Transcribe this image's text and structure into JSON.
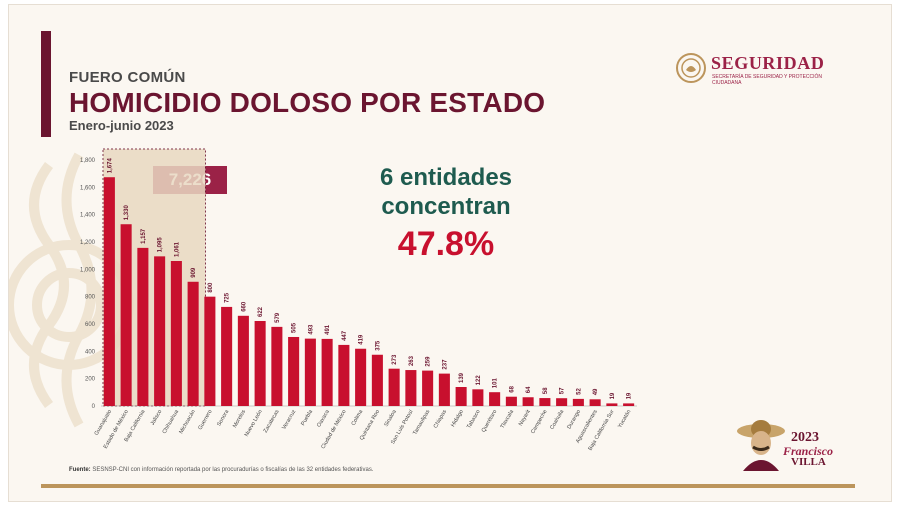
{
  "header": {
    "kicker": "FUERO COMÚN",
    "title": "HOMICIDIO DOLOSO POR ESTADO",
    "subtitle": "Enero-junio 2023"
  },
  "logo": {
    "word": "SEGURIDAD",
    "subtitle": "SECRETARÍA DE SEGURIDAD Y PROTECCIÓN CIUDADANA"
  },
  "highlight": {
    "total": "7,226"
  },
  "callout": {
    "line1": "6 entidades",
    "line2": "concentran",
    "percent": "47.8%"
  },
  "footer": {
    "source_label": "Fuente:",
    "source_text": "SESNSP-CNI con información reportada por las procuradurías o fiscalías de las 32 entidades federativas."
  },
  "emblem": {
    "year": "2023",
    "name1": "Francisco",
    "name2": "VILLA"
  },
  "colors": {
    "bar": "#c8102e",
    "highlight_fill": "#e9d9c2",
    "highlight_border": "#6b1530",
    "accent": "#6b1530",
    "green": "#1e5b4f",
    "gold": "#bc955c"
  },
  "chart_data": {
    "type": "bar",
    "categories": [
      "Guanajuato",
      "Estado de México",
      "Baja California",
      "Jalisco",
      "Chihuahua",
      "Michoacán",
      "Guerrero",
      "Sonora",
      "Morelos",
      "Nuevo León",
      "Zacatecas",
      "Veracruz",
      "Puebla",
      "Oaxaca",
      "Ciudad de México",
      "Colima",
      "Quintana Roo",
      "Sinaloa",
      "San Luis Potosí",
      "Tamaulipas",
      "Chiapas",
      "Hidalgo",
      "Tabasco",
      "Querétaro",
      "Tlaxcala",
      "Nayarit",
      "Campeche",
      "Coahuila",
      "Durango",
      "Aguascalientes",
      "Baja California Sur",
      "Yucatán"
    ],
    "values": [
      1674,
      1330,
      1157,
      1095,
      1061,
      909,
      800,
      725,
      660,
      622,
      579,
      505,
      493,
      491,
      447,
      419,
      375,
      273,
      263,
      259,
      237,
      139,
      122,
      101,
      68,
      64,
      58,
      57,
      52,
      49,
      19,
      19
    ],
    "value_labels": [
      "1,674",
      "1,330",
      "1,157",
      "1,095",
      "1,061",
      "909",
      "800",
      "725",
      "660",
      "622",
      "579",
      "505",
      "493",
      "491",
      "447",
      "419",
      "375",
      "273",
      "263",
      "259",
      "237",
      "139",
      "122",
      "101",
      "68",
      "64",
      "58",
      "57",
      "52",
      "49",
      "19",
      "19"
    ],
    "yticks": [
      "0",
      "200",
      "400",
      "600",
      "800",
      "1,000",
      "1,200",
      "1,400",
      "1,600",
      "1,800"
    ],
    "ylim": [
      0,
      1800
    ],
    "highlighted_count": 6,
    "grid": false,
    "legend": "none"
  }
}
